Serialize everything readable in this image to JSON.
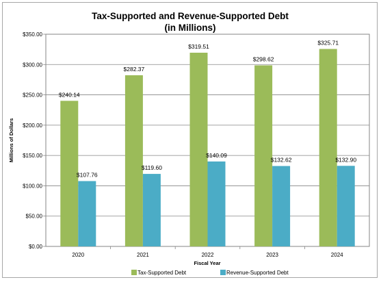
{
  "chart_data": {
    "type": "bar",
    "title_lines": [
      "Tax-Supported and Revenue-Supported Debt",
      "(in Millions)"
    ],
    "xlabel": "Fiscal Year",
    "ylabel": "Millions of Dollars",
    "categories": [
      "2020",
      "2021",
      "2022",
      "2023",
      "2024"
    ],
    "ylim": [
      0,
      350
    ],
    "y_ticks": [
      0,
      50,
      100,
      150,
      200,
      250,
      300,
      350
    ],
    "y_tick_labels": [
      "$0.00",
      "$50.00",
      "$100.00",
      "$150.00",
      "$200.00",
      "$250.00",
      "$300.00",
      "$350.00"
    ],
    "grid": true,
    "legend_position": "bottom",
    "series": [
      {
        "name": "Tax-Supported Debt",
        "color": "#9bbb59",
        "values": [
          240.14,
          282.37,
          319.51,
          298.62,
          325.71
        ],
        "labels": [
          "$240.14",
          "$282.37",
          "$319.51",
          "$298.62",
          "$325.71"
        ]
      },
      {
        "name": "Revenue-Supported Debt",
        "color": "#4bacc6",
        "values": [
          107.76,
          119.6,
          140.09,
          132.62,
          132.9
        ],
        "labels": [
          "$107.76",
          "$119.60",
          "$140.09",
          "$132.62",
          "$132.90"
        ]
      }
    ]
  }
}
